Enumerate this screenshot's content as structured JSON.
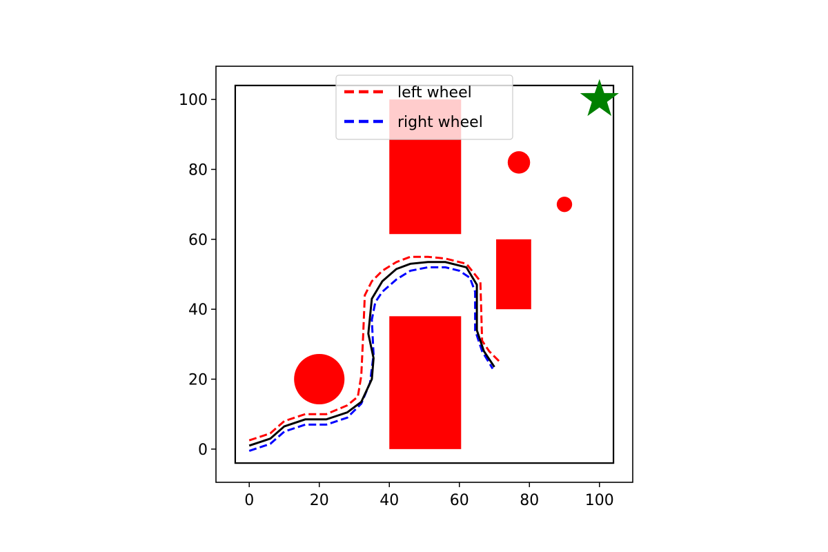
{
  "chart_data": {
    "type": "line",
    "xlim": [
      -9.5,
      109.5
    ],
    "ylim": [
      -9.5,
      109.5
    ],
    "x_ticks": [
      0,
      20,
      40,
      60,
      80,
      100
    ],
    "y_ticks": [
      0,
      20,
      40,
      60,
      80,
      100
    ],
    "grid": false,
    "legend": {
      "location": "top-center",
      "entries": [
        "left wheel",
        "right wheel"
      ]
    },
    "boundary": {
      "x": [
        -4,
        104
      ],
      "y": [
        -4,
        104
      ],
      "color": "#000000"
    },
    "obstacles": {
      "color": "#ff0000",
      "rectangles": [
        {
          "x0": 40,
          "x1": 60.5,
          "y0": 0,
          "y1": 38
        },
        {
          "x0": 40,
          "x1": 60.5,
          "y0": 61.5,
          "y1": 100
        },
        {
          "x0": 70.5,
          "x1": 80.5,
          "y0": 40,
          "y1": 60
        }
      ],
      "circles": [
        {
          "cx": 20,
          "cy": 20,
          "r": 7.2
        },
        {
          "cx": 77,
          "cy": 82,
          "r": 3.2
        },
        {
          "cx": 90,
          "cy": 70,
          "r": 2.2
        }
      ]
    },
    "goal": {
      "x": 100,
      "y": 100,
      "color": "#008000"
    },
    "series": [
      {
        "name": "left wheel",
        "color": "#ff0000",
        "x": [
          0,
          6,
          10,
          16,
          22,
          28,
          31,
          32,
          32.5,
          33,
          35,
          38,
          42,
          46,
          51,
          56,
          62,
          66,
          66.5,
          68.5,
          71.5
        ],
        "y": [
          2.5,
          4.5,
          8,
          10,
          10,
          12.5,
          15,
          21,
          32,
          44,
          48,
          51,
          53.5,
          55,
          55,
          54.5,
          53,
          48,
          31,
          28,
          25
        ]
      },
      {
        "name": "right wheel",
        "color": "#0000ff",
        "x": [
          0,
          6,
          10,
          16,
          22,
          28,
          32,
          34.5,
          35.5,
          35,
          36,
          38,
          42,
          46,
          51,
          56,
          60,
          63,
          64.5,
          64.5,
          66.5,
          69.5
        ],
        "y": [
          -0.5,
          1.5,
          5,
          7,
          7,
          9,
          13,
          19,
          27,
          37,
          42,
          45,
          48.5,
          51,
          52,
          52,
          51,
          49,
          45,
          34,
          28,
          23
        ]
      },
      {
        "name": "",
        "color": "#000000",
        "x": [
          0,
          6,
          10,
          16,
          22,
          28,
          32,
          35,
          35.5,
          34,
          35,
          38,
          42,
          46,
          51,
          56,
          62,
          65,
          65,
          67,
          70
        ],
        "y": [
          1,
          3,
          6.5,
          8.5,
          8.5,
          10.5,
          13.5,
          20,
          26,
          33,
          43,
          48,
          51.5,
          53,
          53.5,
          53.5,
          52,
          47,
          34,
          28,
          23.5
        ]
      }
    ]
  }
}
